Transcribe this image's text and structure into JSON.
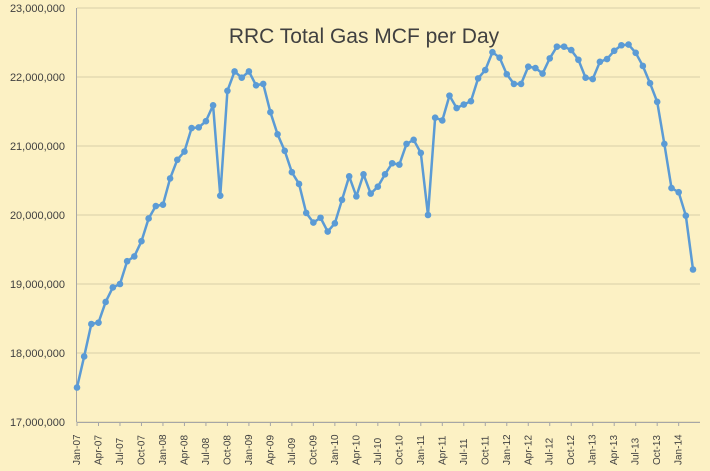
{
  "chart_data": {
    "type": "line",
    "title": "RRC Total Gas MCF per Day",
    "xlabel": "",
    "ylabel": "",
    "ylim": [
      17000000,
      23000000
    ],
    "yticks": [
      17000000,
      18000000,
      19000000,
      20000000,
      21000000,
      22000000,
      23000000
    ],
    "ytick_labels": [
      "17,000,000",
      "18,000,000",
      "19,000,000",
      "20,000,000",
      "21,000,000",
      "22,000,000",
      "23,000,000"
    ],
    "x_labels": [
      "Jan-07",
      "Apr-07",
      "Jul-07",
      "Oct-07",
      "Jan-08",
      "Apr-08",
      "Jul-08",
      "Oct-08",
      "Jan-09",
      "Apr-09",
      "Jul-09",
      "Oct-09",
      "Jan-10",
      "Apr-10",
      "Jul-10",
      "Oct-10",
      "Jan-11",
      "Apr-11",
      "Jul-11",
      "Oct-11",
      "Jan-12",
      "Apr-12",
      "Jul-12",
      "Oct-12",
      "Jan-13",
      "Apr-13",
      "Jul-13",
      "Oct-13",
      "Jan-14"
    ],
    "grid": true,
    "legend": "none",
    "line_color": "#5b9bd5",
    "series": [
      {
        "values": [
          17500000,
          17950000,
          18420000,
          18440000,
          18740000,
          18950000,
          19000000,
          19330000,
          19400000,
          19620000,
          19950000,
          20130000,
          20150000,
          20530000,
          20800000,
          20920000,
          21260000,
          21270000,
          21360000,
          21590000,
          20280000,
          21800000,
          22080000,
          21990000,
          22080000,
          21880000,
          21900000,
          21490000,
          21170000,
          20930000,
          20620000,
          20450000,
          20030000,
          19890000,
          19960000,
          19760000,
          19880000,
          20220000,
          20560000,
          20270000,
          20590000,
          20310000,
          20410000,
          20590000,
          20750000,
          20730000,
          21030000,
          21090000,
          20900000,
          20000000,
          21410000,
          21370000,
          21730000,
          21550000,
          21600000,
          21650000,
          21980000,
          22100000,
          22360000,
          22280000,
          22040000,
          21900000,
          21900000,
          22150000,
          22130000,
          22050000,
          22270000,
          22440000,
          22440000,
          22390000,
          22250000,
          21990000,
          21970000,
          22220000,
          22260000,
          22380000,
          22460000,
          22470000,
          22350000,
          22160000,
          21910000,
          21640000,
          21030000,
          20390000,
          20330000,
          19990000,
          19210000
        ]
      }
    ]
  }
}
